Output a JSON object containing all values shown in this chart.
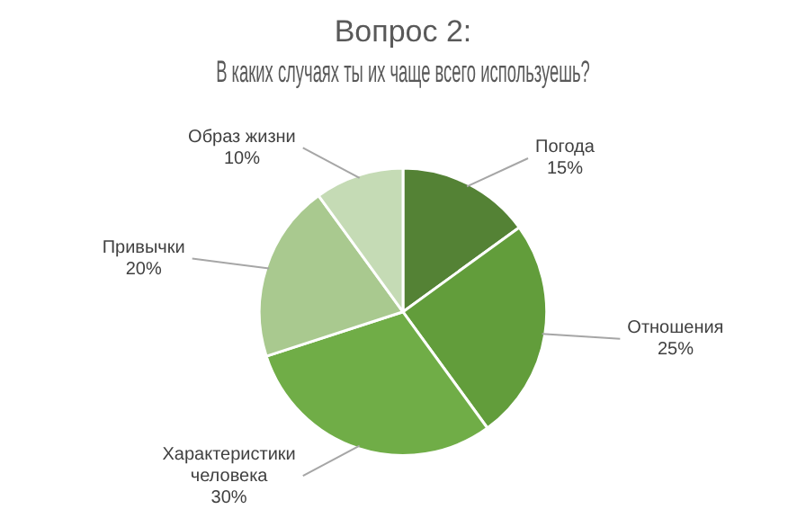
{
  "chart_data": {
    "type": "pie",
    "title": "Вопрос 2:",
    "subtitle": "В каких случаях ты их чаще всего используешь?",
    "categories": [
      "Погода",
      "Отношения",
      "Характеристики человека",
      "Привычки",
      "Образ жизни"
    ],
    "values": [
      15,
      25,
      30,
      20,
      10
    ],
    "value_labels": [
      "15%",
      "25%",
      "30%",
      "20%",
      "10%"
    ],
    "colors": [
      "#548235",
      "#629d3b",
      "#70ad47",
      "#a9c98f",
      "#c5dbb5"
    ],
    "legend": false
  }
}
